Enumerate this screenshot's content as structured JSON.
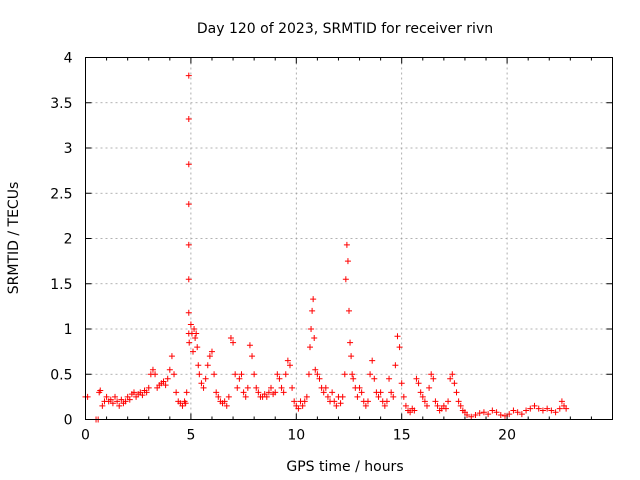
{
  "chart_data": {
    "type": "scatter",
    "title": "Day 120 of 2023, SRMTID for receiver rivn",
    "xlabel": "GPS time / hours",
    "ylabel": "SRMTID / TECUs",
    "xlim": [
      0,
      25
    ],
    "ylim": [
      0,
      4
    ],
    "xticks": [
      0,
      5,
      10,
      15,
      20
    ],
    "xtick_labels": [
      "0",
      "5",
      "10",
      "15",
      "20"
    ],
    "yticks": [
      0,
      0.5,
      1,
      1.5,
      2,
      2.5,
      3,
      3.5,
      4
    ],
    "ytick_labels": [
      "0",
      "0.5",
      "1",
      "1.5",
      "2",
      "2.5",
      "3",
      "3.5",
      "4"
    ],
    "grid": true,
    "marker": "+",
    "color": "#ff0000",
    "series": [
      {
        "name": "SRMTID",
        "points": [
          [
            0.0,
            0.25
          ],
          [
            0.1,
            0.25
          ],
          [
            0.5,
            0.0
          ],
          [
            0.6,
            0.0
          ],
          [
            0.65,
            0.3
          ],
          [
            0.7,
            0.32
          ],
          [
            0.8,
            0.15
          ],
          [
            0.9,
            0.2
          ],
          [
            1.0,
            0.25
          ],
          [
            1.1,
            0.2
          ],
          [
            1.2,
            0.22
          ],
          [
            1.3,
            0.18
          ],
          [
            1.4,
            0.25
          ],
          [
            1.5,
            0.2
          ],
          [
            1.6,
            0.15
          ],
          [
            1.7,
            0.22
          ],
          [
            1.8,
            0.18
          ],
          [
            1.9,
            0.2
          ],
          [
            2.0,
            0.25
          ],
          [
            2.1,
            0.22
          ],
          [
            2.2,
            0.28
          ],
          [
            2.3,
            0.3
          ],
          [
            2.4,
            0.25
          ],
          [
            2.5,
            0.28
          ],
          [
            2.6,
            0.3
          ],
          [
            2.7,
            0.27
          ],
          [
            2.8,
            0.32
          ],
          [
            2.9,
            0.3
          ],
          [
            3.0,
            0.35
          ],
          [
            3.1,
            0.5
          ],
          [
            3.2,
            0.55
          ],
          [
            3.3,
            0.5
          ],
          [
            3.4,
            0.35
          ],
          [
            3.5,
            0.38
          ],
          [
            3.6,
            0.4
          ],
          [
            3.7,
            0.42
          ],
          [
            3.8,
            0.38
          ],
          [
            3.9,
            0.45
          ],
          [
            4.0,
            0.55
          ],
          [
            4.1,
            0.7
          ],
          [
            4.2,
            0.5
          ],
          [
            4.3,
            0.3
          ],
          [
            4.4,
            0.2
          ],
          [
            4.5,
            0.18
          ],
          [
            4.6,
            0.15
          ],
          [
            4.7,
            0.2
          ],
          [
            4.75,
            0.18
          ],
          [
            4.8,
            0.3
          ],
          [
            4.9,
            3.8
          ],
          [
            4.9,
            3.32
          ],
          [
            4.9,
            2.82
          ],
          [
            4.9,
            2.38
          ],
          [
            4.9,
            1.93
          ],
          [
            4.9,
            1.55
          ],
          [
            4.9,
            1.18
          ],
          [
            4.9,
            0.95
          ],
          [
            4.92,
            0.85
          ],
          [
            5.0,
            1.05
          ],
          [
            5.05,
            0.95
          ],
          [
            5.1,
            0.75
          ],
          [
            5.15,
            1.0
          ],
          [
            5.2,
            0.9
          ],
          [
            5.25,
            0.95
          ],
          [
            5.3,
            0.8
          ],
          [
            5.35,
            0.6
          ],
          [
            5.4,
            0.5
          ],
          [
            5.5,
            0.4
          ],
          [
            5.6,
            0.35
          ],
          [
            5.7,
            0.45
          ],
          [
            5.8,
            0.6
          ],
          [
            5.9,
            0.7
          ],
          [
            6.0,
            0.75
          ],
          [
            6.1,
            0.5
          ],
          [
            6.2,
            0.3
          ],
          [
            6.3,
            0.25
          ],
          [
            6.4,
            0.2
          ],
          [
            6.5,
            0.18
          ],
          [
            6.6,
            0.2
          ],
          [
            6.7,
            0.15
          ],
          [
            6.8,
            0.25
          ],
          [
            6.9,
            0.9
          ],
          [
            7.0,
            0.85
          ],
          [
            7.1,
            0.5
          ],
          [
            7.2,
            0.35
          ],
          [
            7.3,
            0.45
          ],
          [
            7.4,
            0.5
          ],
          [
            7.5,
            0.3
          ],
          [
            7.6,
            0.25
          ],
          [
            7.7,
            0.35
          ],
          [
            7.8,
            0.82
          ],
          [
            7.9,
            0.7
          ],
          [
            8.0,
            0.5
          ],
          [
            8.1,
            0.35
          ],
          [
            8.2,
            0.3
          ],
          [
            8.3,
            0.25
          ],
          [
            8.4,
            0.25
          ],
          [
            8.5,
            0.28
          ],
          [
            8.6,
            0.25
          ],
          [
            8.7,
            0.3
          ],
          [
            8.8,
            0.35
          ],
          [
            8.9,
            0.28
          ],
          [
            9.0,
            0.3
          ],
          [
            9.1,
            0.5
          ],
          [
            9.2,
            0.45
          ],
          [
            9.3,
            0.35
          ],
          [
            9.4,
            0.3
          ],
          [
            9.5,
            0.5
          ],
          [
            9.6,
            0.65
          ],
          [
            9.7,
            0.6
          ],
          [
            9.8,
            0.35
          ],
          [
            9.9,
            0.2
          ],
          [
            10.0,
            0.15
          ],
          [
            10.1,
            0.12
          ],
          [
            10.2,
            0.2
          ],
          [
            10.3,
            0.15
          ],
          [
            10.4,
            0.2
          ],
          [
            10.5,
            0.25
          ],
          [
            10.6,
            0.5
          ],
          [
            10.65,
            0.8
          ],
          [
            10.7,
            1.0
          ],
          [
            10.75,
            1.2
          ],
          [
            10.8,
            1.33
          ],
          [
            10.85,
            0.9
          ],
          [
            10.9,
            0.55
          ],
          [
            11.0,
            0.5
          ],
          [
            11.1,
            0.45
          ],
          [
            11.2,
            0.35
          ],
          [
            11.3,
            0.3
          ],
          [
            11.4,
            0.35
          ],
          [
            11.5,
            0.25
          ],
          [
            11.6,
            0.2
          ],
          [
            11.7,
            0.3
          ],
          [
            11.8,
            0.2
          ],
          [
            11.9,
            0.15
          ],
          [
            12.0,
            0.25
          ],
          [
            12.1,
            0.18
          ],
          [
            12.2,
            0.25
          ],
          [
            12.3,
            0.5
          ],
          [
            12.35,
            1.55
          ],
          [
            12.4,
            1.93
          ],
          [
            12.45,
            1.75
          ],
          [
            12.5,
            1.2
          ],
          [
            12.55,
            0.85
          ],
          [
            12.6,
            0.7
          ],
          [
            12.65,
            0.5
          ],
          [
            12.7,
            0.45
          ],
          [
            12.8,
            0.35
          ],
          [
            12.9,
            0.25
          ],
          [
            13.0,
            0.35
          ],
          [
            13.1,
            0.3
          ],
          [
            13.2,
            0.2
          ],
          [
            13.3,
            0.15
          ],
          [
            13.4,
            0.2
          ],
          [
            13.5,
            0.5
          ],
          [
            13.6,
            0.65
          ],
          [
            13.7,
            0.45
          ],
          [
            13.8,
            0.3
          ],
          [
            13.9,
            0.25
          ],
          [
            14.0,
            0.3
          ],
          [
            14.1,
            0.2
          ],
          [
            14.2,
            0.15
          ],
          [
            14.3,
            0.2
          ],
          [
            14.4,
            0.45
          ],
          [
            14.5,
            0.3
          ],
          [
            14.6,
            0.25
          ],
          [
            14.7,
            0.6
          ],
          [
            14.8,
            0.92
          ],
          [
            14.9,
            0.8
          ],
          [
            15.0,
            0.4
          ],
          [
            15.1,
            0.25
          ],
          [
            15.2,
            0.15
          ],
          [
            15.3,
            0.1
          ],
          [
            15.4,
            0.08
          ],
          [
            15.5,
            0.12
          ],
          [
            15.6,
            0.1
          ],
          [
            15.7,
            0.45
          ],
          [
            15.8,
            0.4
          ],
          [
            15.9,
            0.3
          ],
          [
            16.0,
            0.25
          ],
          [
            16.1,
            0.2
          ],
          [
            16.2,
            0.15
          ],
          [
            16.3,
            0.35
          ],
          [
            16.4,
            0.5
          ],
          [
            16.5,
            0.45
          ],
          [
            16.6,
            0.2
          ],
          [
            16.7,
            0.15
          ],
          [
            16.8,
            0.1
          ],
          [
            16.9,
            0.12
          ],
          [
            17.0,
            0.15
          ],
          [
            17.1,
            0.12
          ],
          [
            17.2,
            0.2
          ],
          [
            17.3,
            0.45
          ],
          [
            17.4,
            0.5
          ],
          [
            17.5,
            0.4
          ],
          [
            17.6,
            0.3
          ],
          [
            17.7,
            0.2
          ],
          [
            17.8,
            0.15
          ],
          [
            17.9,
            0.1
          ],
          [
            18.0,
            0.08
          ],
          [
            18.1,
            0.05
          ],
          [
            18.3,
            0.03
          ],
          [
            18.5,
            0.05
          ],
          [
            18.7,
            0.07
          ],
          [
            18.9,
            0.08
          ],
          [
            19.1,
            0.06
          ],
          [
            19.3,
            0.1
          ],
          [
            19.5,
            0.08
          ],
          [
            19.7,
            0.05
          ],
          [
            19.9,
            0.04
          ],
          [
            20.1,
            0.06
          ],
          [
            20.3,
            0.1
          ],
          [
            20.5,
            0.08
          ],
          [
            20.7,
            0.06
          ],
          [
            20.9,
            0.1
          ],
          [
            21.1,
            0.12
          ],
          [
            21.3,
            0.15
          ],
          [
            21.5,
            0.12
          ],
          [
            21.7,
            0.1
          ],
          [
            21.9,
            0.12
          ],
          [
            22.1,
            0.1
          ],
          [
            22.3,
            0.08
          ],
          [
            22.5,
            0.12
          ],
          [
            22.6,
            0.2
          ],
          [
            22.7,
            0.15
          ],
          [
            22.8,
            0.12
          ]
        ]
      }
    ]
  }
}
